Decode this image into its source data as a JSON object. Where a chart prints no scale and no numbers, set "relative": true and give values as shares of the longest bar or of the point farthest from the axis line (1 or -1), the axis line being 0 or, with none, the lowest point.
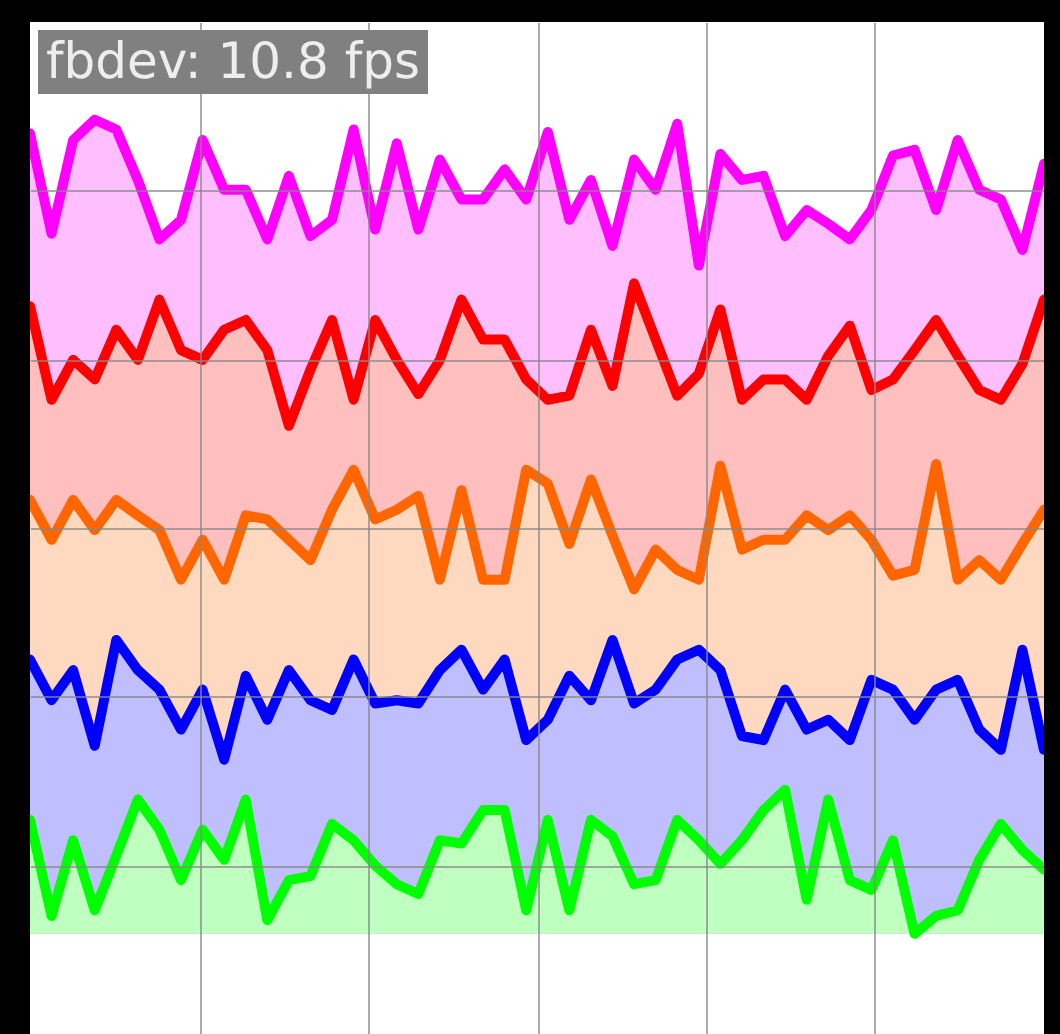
{
  "chart_data": {
    "type": "area",
    "title": "fbdev: 10.8 fps",
    "relative": true,
    "grid": true,
    "categories": [
      null,
      null,
      null,
      null,
      null,
      null,
      null,
      null,
      null,
      null,
      null,
      null,
      null,
      null,
      null,
      null,
      null,
      null,
      null,
      null,
      null,
      null,
      null,
      null,
      null,
      null,
      null,
      null,
      null,
      null,
      null,
      null,
      null,
      null,
      null,
      null,
      null,
      null,
      null,
      null,
      null,
      null,
      null,
      null,
      null,
      null,
      null,
      null
    ],
    "series": [
      {
        "color": "#ff00ff",
        "values": [
          0.983,
          0.86,
          0.975,
          1.0,
          0.988,
          0.926,
          0.853,
          0.877,
          0.975,
          0.914,
          0.914,
          0.853,
          0.931,
          0.857,
          0.877,
          0.988,
          0.865,
          0.971,
          0.865,
          0.951,
          0.902,
          0.902,
          0.939,
          0.902,
          0.985,
          0.877,
          0.926,
          0.845,
          0.951,
          0.914,
          0.995,
          0.821,
          0.958,
          0.926,
          0.931,
          0.857,
          0.889,
          0.872,
          0.853,
          0.889,
          0.956,
          0.963,
          0.889,
          0.975,
          0.914,
          0.902,
          0.84,
          0.946
        ]
      },
      {
        "color": "#ff0000",
        "values": [
          0.771,
          0.656,
          0.705,
          0.681,
          0.742,
          0.705,
          0.779,
          0.717,
          0.705,
          0.742,
          0.754,
          0.717,
          0.624,
          0.693,
          0.754,
          0.656,
          0.754,
          0.705,
          0.663,
          0.705,
          0.779,
          0.73,
          0.73,
          0.681,
          0.656,
          0.661,
          0.742,
          0.673,
          0.799,
          0.73,
          0.661,
          0.688,
          0.767,
          0.656,
          0.681,
          0.681,
          0.656,
          0.71,
          0.747,
          0.668,
          0.681,
          0.717,
          0.754,
          0.71,
          0.668,
          0.656,
          0.7,
          0.779
        ]
      },
      {
        "color": "#ff6600",
        "values": [
          0.533,
          0.484,
          0.533,
          0.496,
          0.533,
          0.514,
          0.496,
          0.435,
          0.484,
          0.435,
          0.514,
          0.509,
          0.484,
          0.459,
          0.521,
          0.57,
          0.509,
          0.521,
          0.538,
          0.435,
          0.545,
          0.435,
          0.435,
          0.57,
          0.553,
          0.479,
          0.558,
          0.489,
          0.423,
          0.472,
          0.447,
          0.435,
          0.575,
          0.472,
          0.484,
          0.484,
          0.514,
          0.496,
          0.514,
          0.484,
          0.44,
          0.447,
          0.577,
          0.435,
          0.459,
          0.435,
          0.479,
          0.521
        ]
      },
      {
        "color": "#0000ff",
        "values": [
          0.337,
          0.287,
          0.324,
          0.231,
          0.361,
          0.324,
          0.3,
          0.251,
          0.3,
          0.214,
          0.317,
          0.263,
          0.324,
          0.287,
          0.275,
          0.337,
          0.283,
          0.287,
          0.283,
          0.324,
          0.349,
          0.3,
          0.337,
          0.238,
          0.263,
          0.317,
          0.287,
          0.361,
          0.283,
          0.3,
          0.337,
          0.349,
          0.324,
          0.243,
          0.238,
          0.3,
          0.251,
          0.263,
          0.238,
          0.312,
          0.3,
          0.263,
          0.3,
          0.312,
          0.251,
          0.226,
          0.349,
          0.226
        ]
      },
      {
        "color": "#00ff00",
        "values": [
          0.14,
          0.022,
          0.115,
          0.029,
          0.096,
          0.165,
          0.128,
          0.066,
          0.128,
          0.091,
          0.165,
          0.017,
          0.066,
          0.071,
          0.135,
          0.115,
          0.084,
          0.061,
          0.049,
          0.115,
          0.111,
          0.152,
          0.152,
          0.029,
          0.14,
          0.029,
          0.14,
          0.12,
          0.061,
          0.066,
          0.14,
          0.115,
          0.086,
          0.115,
          0.152,
          0.177,
          0.042,
          0.165,
          0.066,
          0.054,
          0.115,
          0,
          0.022,
          0.029,
          0.091,
          0.135,
          0.103,
          0.079
        ]
      }
    ]
  }
}
